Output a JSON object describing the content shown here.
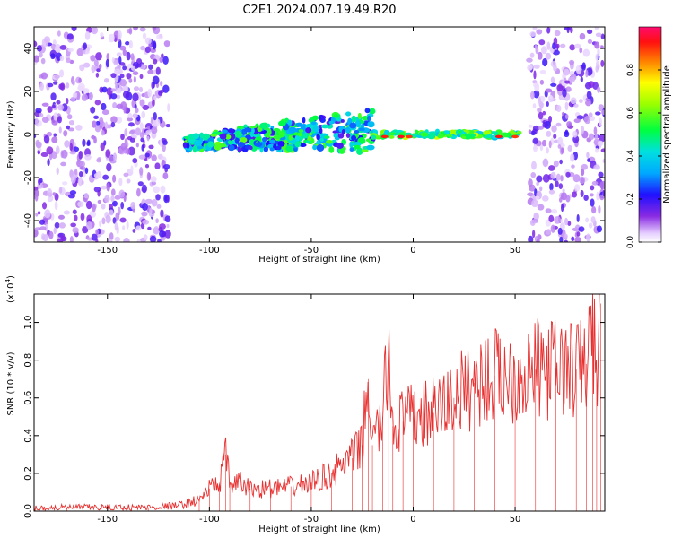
{
  "title": "C2E1.2024.007.19.49.R20",
  "chart_data": [
    {
      "type": "heatmap",
      "xlabel": "Height of straight line (km)",
      "ylabel": "Frequency (Hz)",
      "xlim": [
        -186,
        94
      ],
      "ylim": [
        -50,
        50
      ],
      "xticks": [
        -150,
        -100,
        -50,
        0,
        50
      ],
      "xtick_labels": [
        "-150",
        "-100",
        "-50",
        "0",
        "50"
      ],
      "yticks": [
        -40,
        -20,
        0,
        20,
        40
      ],
      "ytick_labels": [
        "-40",
        "-20",
        "0",
        "20",
        "40"
      ],
      "colorbar": {
        "label": "Normalized spectral amplitude",
        "range": [
          0,
          1
        ],
        "ticks": [
          0,
          0.2,
          0.4,
          0.6,
          0.8
        ],
        "tick_labels": [
          "0.0",
          "0.2",
          "0.4",
          "0.6",
          "0.8"
        ]
      },
      "regions": [
        {
          "name": "noise-left",
          "x": [
            -186,
            -120
          ],
          "freq": [
            -50,
            50
          ],
          "amplitude": 0.15
        },
        {
          "name": "ionization-band",
          "x": [
            -112,
            -20
          ],
          "freq": [
            -12,
            18
          ],
          "amplitude": 0.45
        },
        {
          "name": "stable-channel",
          "x": [
            -20,
            52
          ],
          "freq": [
            -2,
            2
          ],
          "amplitude": 0.75
        },
        {
          "name": "noise-right",
          "x": [
            57,
            94
          ],
          "freq": [
            -50,
            50
          ],
          "amplitude": 0.15
        }
      ],
      "grid": false
    },
    {
      "type": "line",
      "series": [
        {
          "color": "#e83030",
          "x": [
            -186,
            -170,
            -150,
            -130,
            -115,
            -105,
            -100,
            -95,
            -92,
            -90,
            -85,
            -80,
            -70,
            -60,
            -50,
            -40,
            -30,
            -25,
            -22,
            -20,
            -15,
            -12,
            -10,
            -5,
            0,
            10,
            20,
            30,
            40,
            50,
            60,
            70,
            80,
            85,
            88,
            90,
            92
          ],
          "y": [
            0.015,
            0.02,
            0.02,
            0.02,
            0.03,
            0.06,
            0.12,
            0.15,
            0.3,
            0.14,
            0.15,
            0.12,
            0.12,
            0.13,
            0.15,
            0.2,
            0.28,
            0.35,
            0.7,
            0.35,
            0.5,
            0.85,
            0.45,
            0.48,
            0.5,
            0.52,
            0.6,
            0.68,
            0.72,
            0.72,
            0.75,
            0.76,
            0.75,
            0.78,
            0.98,
            0.7,
            1.1
          ]
        }
      ],
      "xlabel": "Height of straight line (km)",
      "ylabel": "SNR (10 * v/v)",
      "multiplier_label": "(x10",
      "multiplier_exp": "4",
      "xlim": [
        -186,
        94
      ],
      "ylim": [
        0,
        1.15
      ],
      "xticks": [
        -150,
        -100,
        -50,
        0,
        50
      ],
      "xtick_labels": [
        "-150",
        "-100",
        "-50",
        "0",
        "50"
      ],
      "yticks": [
        0,
        0.2,
        0.4,
        0.6,
        0.8,
        1.0
      ],
      "ytick_labels": [
        "0.0",
        "0.2",
        "0.4",
        "0.6",
        "0.8",
        "1.0"
      ],
      "grid": false
    }
  ],
  "colors": {
    "snr_line": "#e83030"
  }
}
